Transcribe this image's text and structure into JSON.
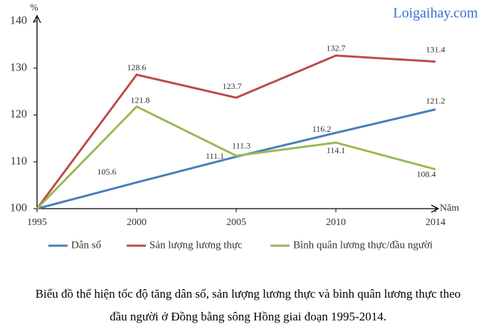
{
  "chart_data": {
    "type": "line",
    "watermark": "Loigaihay.com",
    "y_label": "%",
    "x_label": "Năm",
    "categories": [
      "1995",
      "2000",
      "2005",
      "2010",
      "2014"
    ],
    "series": [
      {
        "name": "Dân số",
        "color": "#4a7ebb",
        "values": [
          100,
          105.6,
          111.1,
          116.2,
          121.2
        ]
      },
      {
        "name": "Sản lượng lương thực",
        "color": "#be4b48",
        "values": [
          100,
          128.6,
          123.7,
          132.7,
          131.4
        ]
      },
      {
        "name": "Bình quân lương thực/đầu người",
        "color": "#98b954",
        "values": [
          100,
          121.8,
          111.3,
          114.1,
          108.4
        ]
      }
    ],
    "ylim": [
      100,
      140
    ],
    "yticks": [
      100,
      110,
      120,
      130,
      140
    ],
    "caption": [
      "Biểu đồ thể hiện tốc độ tăng dân số, sản lượng lương thực và bình quân lương thực theo",
      "đầu người ở Đồng bằng sông Hồng giai đoạn 1995-2014."
    ]
  }
}
